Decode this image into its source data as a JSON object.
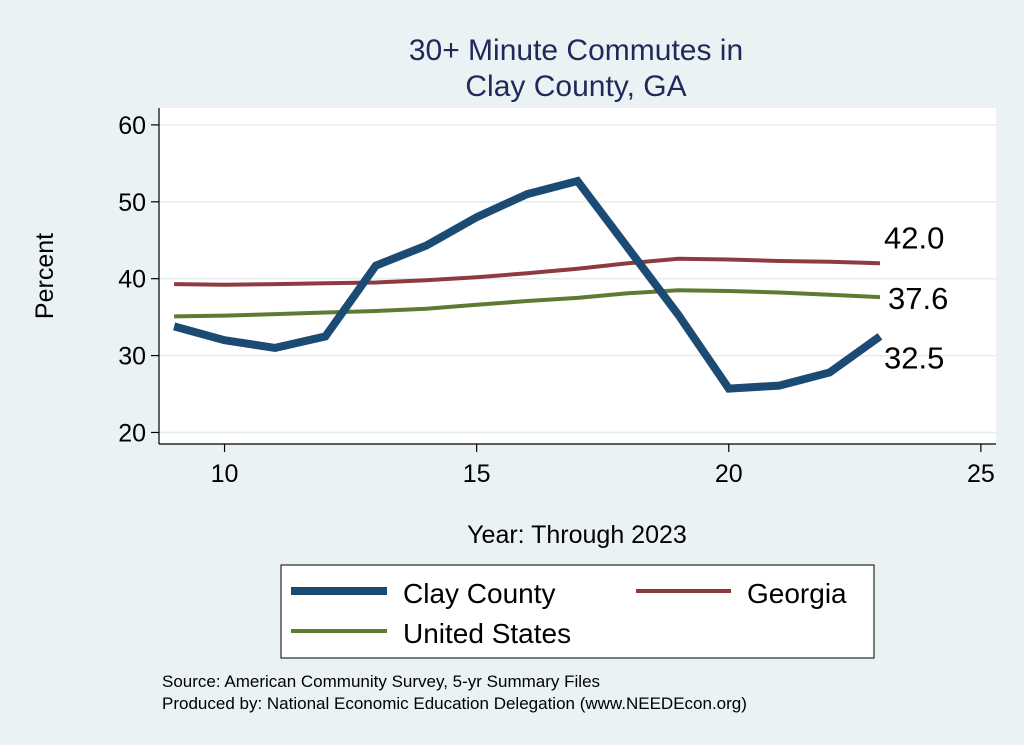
{
  "chart_data": {
    "type": "line",
    "title_line1": "30+ Minute Commutes in",
    "title_line2": "Clay County, GA",
    "xlabel": "Year: Through 2023",
    "ylabel": "Percent",
    "xlim": [
      8.7,
      25.3
    ],
    "ylim": [
      18.5,
      62.2
    ],
    "xticks": [
      10,
      15,
      20,
      25
    ],
    "yticks": [
      20,
      30,
      40,
      50,
      60
    ],
    "grid": true,
    "series": [
      {
        "name": "Clay County",
        "color": "#1b4a72",
        "x": [
          9,
          10,
          11,
          12,
          13,
          14,
          15,
          16,
          17,
          18,
          19,
          20,
          21,
          22,
          23
        ],
        "values": [
          33.8,
          32.0,
          31.0,
          32.5,
          41.7,
          44.3,
          48.0,
          51.0,
          52.7,
          44.0,
          35.3,
          25.7,
          26.1,
          27.8,
          32.5
        ],
        "end_label": "32.5"
      },
      {
        "name": "Georgia",
        "color": "#8e3b40",
        "x": [
          9,
          10,
          11,
          12,
          13,
          14,
          15,
          16,
          17,
          18,
          19,
          20,
          21,
          22,
          23
        ],
        "values": [
          39.3,
          39.2,
          39.3,
          39.4,
          39.5,
          39.8,
          40.2,
          40.7,
          41.3,
          42.0,
          42.6,
          42.5,
          42.3,
          42.2,
          42.0
        ],
        "end_label": "42.0"
      },
      {
        "name": "United States",
        "color": "#5e7a33",
        "x": [
          9,
          10,
          11,
          12,
          13,
          14,
          15,
          16,
          17,
          18,
          19,
          20,
          21,
          22,
          23
        ],
        "values": [
          35.1,
          35.2,
          35.4,
          35.6,
          35.8,
          36.1,
          36.6,
          37.1,
          37.5,
          38.1,
          38.5,
          38.4,
          38.2,
          37.9,
          37.6
        ],
        "end_label": "37.6"
      }
    ],
    "legend": [
      "Clay County",
      "Georgia",
      "United States"
    ],
    "source_line1": "Source: American Community Survey, 5-yr Summary Files",
    "source_line2": "Produced by: National Economic Education Delegation (www.NEEDEcon.org)"
  }
}
